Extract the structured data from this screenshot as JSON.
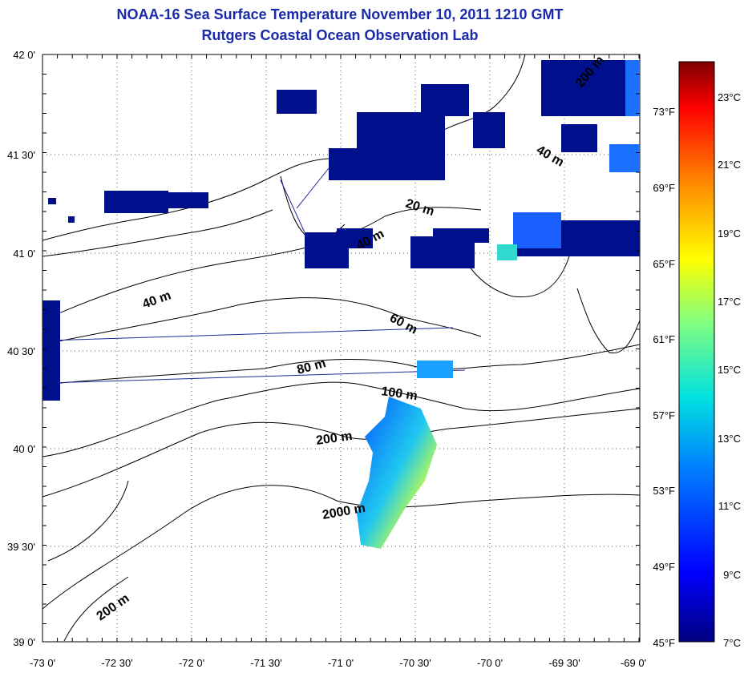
{
  "title": {
    "line1": "NOAA-16 Sea Surface Temperature November 10, 2011 1210 GMT",
    "line2": "Rutgers Coastal Ocean Observation Lab"
  },
  "axes": {
    "lon_labels": [
      "-73 0'",
      "-72 30'",
      "-72 0'",
      "-71 30'",
      "-71 0'",
      "-70 30'",
      "-70 0'",
      "-69 30'",
      "-69 0'"
    ],
    "lat_labels": [
      "42 0'",
      "41 30'",
      "41 0'",
      "40 30'",
      "40 0'",
      "39 30'",
      "39 0'"
    ]
  },
  "contour_labels": [
    "20 m",
    "40 m",
    "40 m",
    "40 m",
    "60 m",
    "80 m",
    "100 m",
    "200 m",
    "2000 m",
    "200 m",
    "200 m"
  ],
  "colorbar": {
    "fahrenheit": [
      "73°F",
      "69°F",
      "65°F",
      "61°F",
      "57°F",
      "53°F",
      "49°F",
      "45°F"
    ],
    "celsius": [
      "23°C",
      "21°C",
      "19°C",
      "17°C",
      "15°C",
      "13°C",
      "11°C",
      "9°C",
      "7°C"
    ]
  },
  "colors": {
    "title": "#1a2aa8",
    "land": "#ffffff",
    "cold": "#00108c"
  }
}
